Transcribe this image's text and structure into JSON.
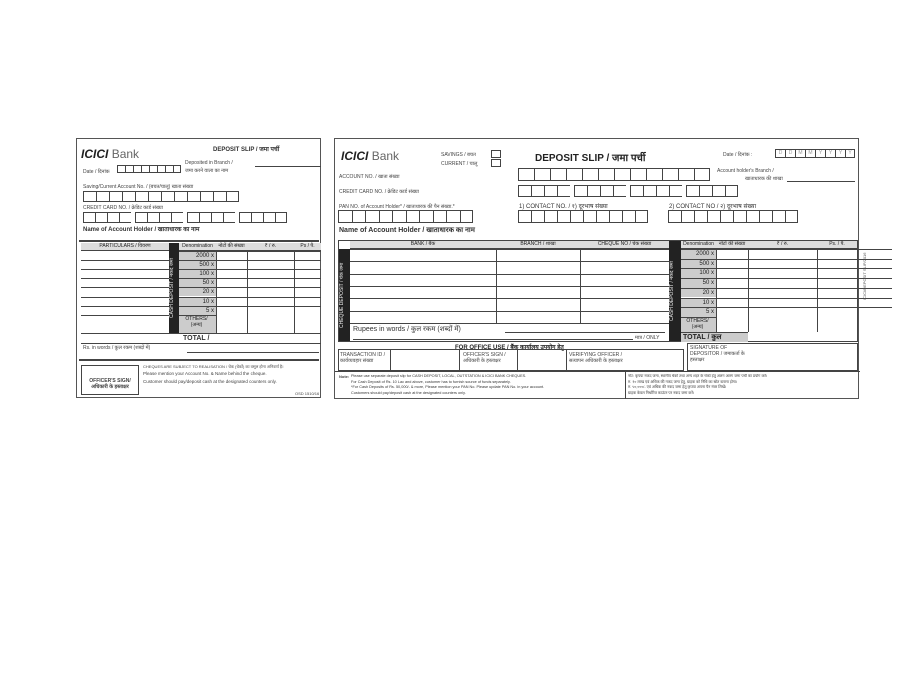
{
  "left_slip": {
    "brand": "ICICI",
    "brand_suffix": "Bank",
    "title": "DEPOSIT SLIP / जमा पर्ची",
    "date_label": "Date / दिनांक",
    "branch_label": "Deposited in Branch /",
    "branch_label_hi": "जमा करने वाला का नाम",
    "account_label": "Saving/Current Account No. / (बचत/चालू) खाता संख्या",
    "credit_card_label": "CREDIT CARD NO. / क्रेडिट कार्ड संख्या",
    "name_label": "Name of Account Holder / खाताधारक का नाम",
    "particulars_header": "PARTICULARS / विवरण",
    "denom_header": "Denomination",
    "count_header": "नोटों की संख्या",
    "rs_header": "₹ / रु.",
    "ps_header": "Ps / पै.",
    "cash_bar": "CASH DEPOSIT / नकद जमा",
    "denominations": [
      "2000 x",
      "500 x",
      "100 x",
      "50 x",
      "20 x",
      "10 x",
      "5 x"
    ],
    "others": "OTHERS/ (अन्य)",
    "total": "TOTAL /",
    "words_label": "Rs. in words / कुल रकम (शब्दों में)",
    "officer_sign": "OFFICER'S SIGN/ अधिकारी के हस्ताक्षर",
    "realisation_note": "CHEQUES ARE SUBJECT TO REALISATION / चेक (चेकों) का वसूल होना अनिवार्य है।",
    "note1": "Please mention your Account No. & Name behind the cheque.",
    "note2": "Customer should pay/deposit cash at the designated counters only.",
    "form_code": "OSD 1510/16"
  },
  "right_slip": {
    "brand": "ICICI",
    "brand_suffix": "Bank",
    "savings_label": "SAVINGS / बचत",
    "current_label": "CURRENT / चालू",
    "title": "DEPOSIT SLIP / जमा पर्ची",
    "date_label": "Date / दिनांक :",
    "date_boxes": [
      "D",
      "D",
      "M",
      "M",
      "Y",
      "Y",
      "Y",
      "Y"
    ],
    "account_label": "ACCOUNT NO. / खाता संख्या",
    "branch_label": "Account holder's Branch /",
    "branch_label_hi": "खाताधारक की शाखा",
    "credit_card_label": "CREDIT CARD NO. / क्रेडिट कार्ड संख्या",
    "pan_label": "PAN NO. of Account Holder* / खाताधारक की पैन संख्या.*",
    "contact1_label": "1) CONTACT NO. / १) दूरभाष संख्या",
    "contact2_label": "2) CONTACT NO / २) दूरभाष संख्या",
    "name_label": "Name of Account Holder / खाताधारक का नाम",
    "bank_header": "BANK / बैंक",
    "branch_header": "BRANCH / शाखा",
    "cheque_header": "CHEQUE NO / चेक संख्या",
    "cheque_bar": "CHEQUE DEPOSIT / चेक जमा",
    "cash_bar": "CASH DEPOSIT / नकद जमा",
    "denom_header": "Denomination",
    "count_header": "नोटों की संख्या",
    "rs_header": "₹ / रु.",
    "ps_header": "Ps. / पै.",
    "denominations": [
      "2000 x",
      "500 x",
      "100 x",
      "50 x",
      "20 x",
      "10 x",
      "5 x"
    ],
    "others": "OTHERS/ (अन्य)",
    "total": "TOTAL / कुल",
    "words_label": "Rupees in words / कुल रकम (शब्दों में)",
    "only": "मात्र / ONLY",
    "office_use": "FOR OFFICE USE / बैंक कार्यालय उपयोग हेतु",
    "transaction_id": "TRANSACTION ID / कार्यव्यवहार संख्या",
    "officer_sign": "OFFICER'S SIGN / अधिकारी के हस्ताक्षर",
    "verifying_officer": "VERIFYING OFFICER / सत्यापन अधिकारी के हस्ताक्षर",
    "depositor_sign": "SIGNATURE OF DEPOSITOR / जमाकर्ता के हस्ताक्षर",
    "note_label": "Note:",
    "notes_en": [
      "Please use separate deposit slip for CASH DEPOSIT, LOCAL, OUTSTATION & ICICI BANK CHEQUES.",
      "For Cash Deposit of Rs. 10 Lac and above, customer has to furnish source of funds separately.",
      "*For Cash Deposits of Rs. 50,000/- & more, Please mention your PAN No. Please update PAN No. in your account.",
      "Customers should pay/deposit cash at the designated counters only."
    ],
    "notes_hi": [
      "नोट: कृपया नकद जमा, स्थानीय चेकों तथा अन्य शहर के चेकों हेतु अलग अलग जमा पर्ची का प्रयोग करें।",
      "रु. १० लाख एवं अधिक की नकद जमा हेतु, ग्राहक को निधि का स्रोत बताना होगा।",
      "रु. ५०,०००/- एवं अधिक की नकद जमा हेतु कृपया अपना पैन नंबर लिखें।",
      "ग्राहक केवल निर्धारित काउंटर पर नकद जमा करें।"
    ],
    "side_code": "ICICI/DEPOSIT SLIP/2016"
  }
}
